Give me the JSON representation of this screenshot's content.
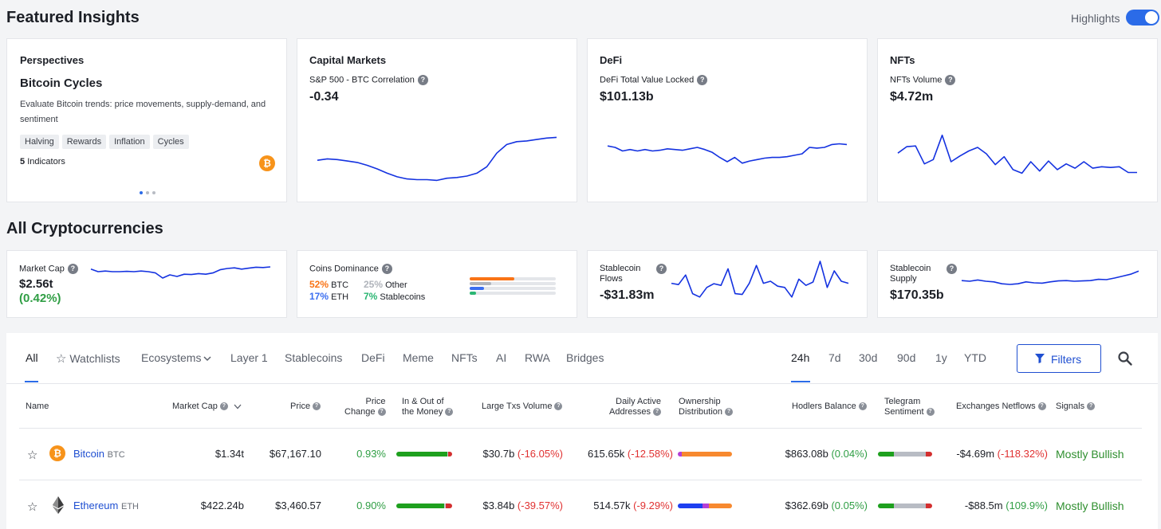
{
  "header": {
    "title": "Featured Insights",
    "highlights_label": "Highlights",
    "highlights_on": true
  },
  "perspectives": {
    "title": "Perspectives",
    "subtitle": "Bitcoin Cycles",
    "description": "Evaluate Bitcoin trends: price movements, supply-demand, and sentiment",
    "tags": [
      "Halving",
      "Rewards",
      "Inflation",
      "Cycles"
    ],
    "indicators_count": "5",
    "indicators_label": "Indicators",
    "coin_symbol": "₿"
  },
  "capital_markets": {
    "title": "Capital Markets",
    "label": "S&P 500 - BTC Correlation",
    "value": "-0.34",
    "spark": [
      0.42,
      0.44,
      0.43,
      0.41,
      0.39,
      0.35,
      0.3,
      0.24,
      0.19,
      0.16,
      0.15,
      0.15,
      0.14,
      0.17,
      0.18,
      0.2,
      0.24,
      0.33,
      0.52,
      0.64,
      0.68,
      0.69,
      0.71,
      0.73,
      0.74
    ]
  },
  "defi": {
    "title": "DeFi",
    "label": "DeFi Total Value Locked",
    "value": "$101.13b",
    "spark": [
      0.62,
      0.6,
      0.55,
      0.57,
      0.55,
      0.57,
      0.55,
      0.56,
      0.58,
      0.57,
      0.56,
      0.58,
      0.6,
      0.57,
      0.53,
      0.46,
      0.4,
      0.46,
      0.38,
      0.41,
      0.43,
      0.45,
      0.46,
      0.46,
      0.47,
      0.49,
      0.51,
      0.6,
      0.59,
      0.6,
      0.64,
      0.65,
      0.64
    ]
  },
  "nfts": {
    "title": "NFTs",
    "label": "NFTs Volume",
    "value": "$4.72m",
    "spark": [
      0.52,
      0.61,
      0.62,
      0.37,
      0.43,
      0.77,
      0.4,
      0.48,
      0.55,
      0.6,
      0.51,
      0.36,
      0.47,
      0.29,
      0.24,
      0.4,
      0.27,
      0.41,
      0.29,
      0.37,
      0.31,
      0.4,
      0.31,
      0.33,
      0.32,
      0.33,
      0.25,
      0.25
    ]
  },
  "section2": {
    "title": "All Cryptocurrencies"
  },
  "market_cap": {
    "label": "Market Cap",
    "value": "$2.56t",
    "change": "(0.42%)",
    "spark": [
      0.68,
      0.6,
      0.62,
      0.6,
      0.6,
      0.61,
      0.6,
      0.62,
      0.6,
      0.56,
      0.4,
      0.5,
      0.45,
      0.52,
      0.51,
      0.54,
      0.52,
      0.56,
      0.66,
      0.7,
      0.72,
      0.68,
      0.71,
      0.74,
      0.73,
      0.75
    ]
  },
  "coins_dominance": {
    "label": "Coins Dominance",
    "items": [
      {
        "pct": "52%",
        "name": "BTC",
        "color": "#f97316"
      },
      {
        "pct": "25%",
        "name": "Other",
        "color": "#b0b4bb"
      },
      {
        "pct": "17%",
        "name": "ETH",
        "color": "#3b6ef0"
      },
      {
        "pct": "7%",
        "name": "Stablecoins",
        "color": "#2bb673"
      }
    ],
    "bars": [
      0.52,
      0.25,
      0.17,
      0.07
    ]
  },
  "stablecoin_flows": {
    "label_line1": "Stablecoin",
    "label_line2": "Flows",
    "value": "-$31.83m",
    "spark": [
      0.45,
      0.42,
      0.65,
      0.2,
      0.12,
      0.35,
      0.44,
      0.4,
      0.8,
      0.2,
      0.18,
      0.45,
      0.88,
      0.45,
      0.5,
      0.38,
      0.35,
      0.12,
      0.55,
      0.4,
      0.48,
      0.98,
      0.35,
      0.75,
      0.5,
      0.45
    ]
  },
  "stablecoin_supply": {
    "label_line1": "Stablecoin",
    "label_line2": "Supply",
    "value": "$170.35b",
    "spark": [
      0.52,
      0.5,
      0.54,
      0.5,
      0.48,
      0.42,
      0.4,
      0.42,
      0.48,
      0.45,
      0.44,
      0.48,
      0.51,
      0.52,
      0.5,
      0.51,
      0.52,
      0.56,
      0.55,
      0.6,
      0.66,
      0.72,
      0.82
    ]
  },
  "tabs": {
    "items": [
      "All",
      "Watchlists",
      "Ecosystems",
      "Layer 1",
      "Stablecoins",
      "DeFi",
      "Meme",
      "NFTs",
      "AI",
      "RWA",
      "Bridges"
    ],
    "active": "All",
    "ranges": [
      "24h",
      "7d",
      "30d",
      "90d",
      "1y",
      "YTD"
    ],
    "active_range": "24h",
    "filters_label": "Filters"
  },
  "table": {
    "headers": {
      "name": "Name",
      "market_cap": "Market Cap",
      "price": "Price",
      "price_change_1": "Price",
      "price_change_2": "Change",
      "in_out_1": "In & Out of",
      "in_out_2": "the Money",
      "large_txs": "Large Txs Volume",
      "daily_active_1": "Daily Active",
      "daily_active_2": "Addresses",
      "ownership_1": "Ownership",
      "ownership_2": "Distribution",
      "hodlers": "Hodlers Balance",
      "telegram_1": "Telegram",
      "telegram_2": "Sentiment",
      "exchanges": "Exchanges Netflows",
      "signals": "Signals"
    },
    "rows": [
      {
        "name": "Bitcoin",
        "ticker": "BTC",
        "market_cap": "$1.34t",
        "price": "$67,167.10",
        "price_change": "0.93%",
        "large_txs": "$30.7b",
        "large_txs_change": "(-16.05%)",
        "daily_active": "615.65k",
        "daily_active_change": "(-12.58%)",
        "hodlers": "$863.08b",
        "hodlers_change": "(0.04%)",
        "netflows": "-$4.69m",
        "netflows_change": "(-118.32%)",
        "signal": "Mostly Bullish",
        "in_out": [
          0.91,
          0.02,
          0.07
        ],
        "ownership": [
          0.08,
          0.92
        ],
        "telegram": [
          0.3,
          0.58,
          0.12
        ]
      },
      {
        "name": "Ethereum",
        "ticker": "ETH",
        "market_cap": "$422.24b",
        "price": "$3,460.57",
        "price_change": "0.90%",
        "large_txs": "$3.84b",
        "large_txs_change": "(-39.57%)",
        "daily_active": "514.57k",
        "daily_active_change": "(-9.29%)",
        "hodlers": "$362.69b",
        "hodlers_change": "(0.05%)",
        "netflows": "-$88.5m",
        "netflows_change": "(109.9%)",
        "signal": "Mostly Bullish",
        "in_out": [
          0.86,
          0.03,
          0.11
        ],
        "ownership": [
          0.45,
          0.12,
          0.43
        ],
        "telegram": [
          0.3,
          0.58,
          0.12
        ]
      }
    ]
  },
  "colors": {
    "accent": "#2b6be8",
    "spark": "#1432e0",
    "positive": "#2f9e44",
    "negative": "#e03131",
    "btc": "#f7931a"
  }
}
